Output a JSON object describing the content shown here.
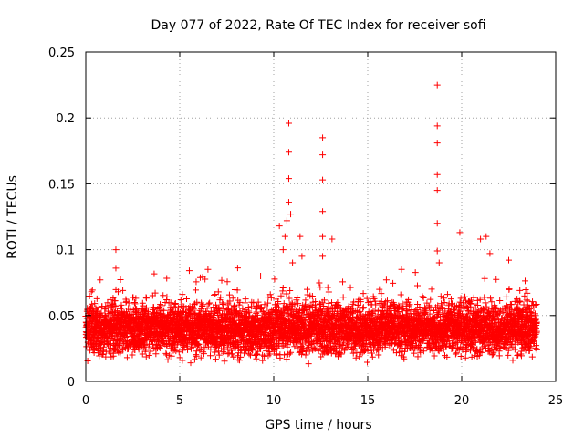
{
  "chart_data": {
    "type": "scatter",
    "title": "Day 077 of 2022, Rate Of TEC Index for receiver sofi",
    "xlabel": "GPS time / hours",
    "ylabel": "ROTI / TECUs",
    "xlim": [
      0,
      25
    ],
    "ylim": [
      0,
      0.25
    ],
    "xticks": [
      0,
      5,
      10,
      15,
      20,
      25
    ],
    "xtick_labels": [
      "0",
      "5",
      "10",
      "15",
      "20",
      "25"
    ],
    "yticks": [
      0,
      0.05,
      0.1,
      0.15,
      0.2,
      0.25
    ],
    "ytick_labels": [
      "0",
      "0.05",
      "0.1",
      "0.15",
      "0.2",
      "0.25"
    ],
    "grid": true,
    "marker": "+",
    "series": [
      {
        "name": "ROTI",
        "color": "#ff0000",
        "baseline_points": {
          "x_range": [
            0,
            24
          ],
          "typical_band": [
            0.02,
            0.06
          ],
          "note_values": "dense continuous cloud; representative samples below"
        },
        "x": [
          0.1,
          0.3,
          0.6,
          1.0,
          1.6,
          1.6,
          2.1,
          2.7,
          3.2,
          3.8,
          4.3,
          4.9,
          5.4,
          6.0,
          6.5,
          7.1,
          7.6,
          8.2,
          8.7,
          9.3,
          9.8,
          10.3,
          10.5,
          10.6,
          10.7,
          10.8,
          10.8,
          10.8,
          10.8,
          10.9,
          11.0,
          11.4,
          11.5,
          12.6,
          12.6,
          12.6,
          12.6,
          12.6,
          12.6,
          13.1,
          13.5,
          14.1,
          14.6,
          15.2,
          15.7,
          16.3,
          16.8,
          17.4,
          17.9,
          18.4,
          18.7,
          18.7,
          18.7,
          18.7,
          18.7,
          18.7,
          18.7,
          18.8,
          19.3,
          19.9,
          20.4,
          21.0,
          21.3,
          21.5,
          22.0,
          22.5,
          23.0,
          23.5,
          23.9
        ],
        "y": [
          0.035,
          0.068,
          0.045,
          0.03,
          0.1,
          0.086,
          0.04,
          0.055,
          0.035,
          0.048,
          0.062,
          0.03,
          0.045,
          0.05,
          0.085,
          0.02,
          0.04,
          0.06,
          0.035,
          0.08,
          0.045,
          0.118,
          0.1,
          0.11,
          0.122,
          0.196,
          0.174,
          0.154,
          0.136,
          0.127,
          0.09,
          0.11,
          0.095,
          0.185,
          0.172,
          0.153,
          0.129,
          0.11,
          0.095,
          0.108,
          0.04,
          0.055,
          0.03,
          0.05,
          0.045,
          0.06,
          0.085,
          0.035,
          0.045,
          0.07,
          0.225,
          0.194,
          0.181,
          0.157,
          0.145,
          0.12,
          0.099,
          0.09,
          0.05,
          0.113,
          0.06,
          0.108,
          0.11,
          0.097,
          0.04,
          0.092,
          0.055,
          0.035,
          0.05
        ]
      }
    ]
  }
}
